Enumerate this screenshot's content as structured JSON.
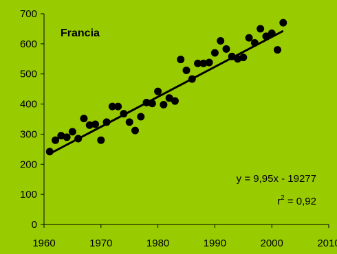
{
  "chart_data": {
    "type": "scatter",
    "title": "Francia",
    "xlabel": "",
    "ylabel": "",
    "xlim": [
      1960,
      2010
    ],
    "ylim": [
      0,
      700
    ],
    "x_ticks": [
      "1960",
      "1970",
      "1980",
      "1990",
      "2000",
      "2010"
    ],
    "y_ticks": [
      "0",
      "100",
      "200",
      "300",
      "400",
      "500",
      "600",
      "700"
    ],
    "grid": false,
    "legend": "none",
    "colors": {
      "background": "#99cc00",
      "points": "#000000",
      "trend": "#000000"
    },
    "series": [
      {
        "x": [
          1961,
          1962,
          1963,
          1964,
          1965,
          1966,
          1967,
          1968,
          1969,
          1970,
          1971,
          1972,
          1973,
          1974,
          1975,
          1976,
          1977,
          1978,
          1979,
          1980,
          1981,
          1982,
          1983,
          1984,
          1985,
          1986,
          1987,
          1988,
          1989,
          1990,
          1991,
          1992,
          1993,
          1994,
          1995,
          1996,
          1997,
          1998,
          1999,
          2000,
          2001,
          2002
        ],
        "y": [
          242,
          280,
          295,
          290,
          308,
          285,
          352,
          330,
          333,
          280,
          340,
          392,
          392,
          368,
          340,
          312,
          358,
          405,
          402,
          442,
          398,
          420,
          410,
          548,
          512,
          483,
          535,
          535,
          538,
          570,
          610,
          583,
          558,
          550,
          555,
          620,
          603,
          650,
          625,
          635,
          580,
          670
        ]
      }
    ],
    "trendline": {
      "slope": 9.95,
      "intercept": -19277,
      "x_range": [
        1961,
        2002
      ],
      "equation": "y = 9,95x - 19277",
      "r2_prefix": "r",
      "r2_exp": "2",
      "r2_value": " = 0,92"
    }
  }
}
